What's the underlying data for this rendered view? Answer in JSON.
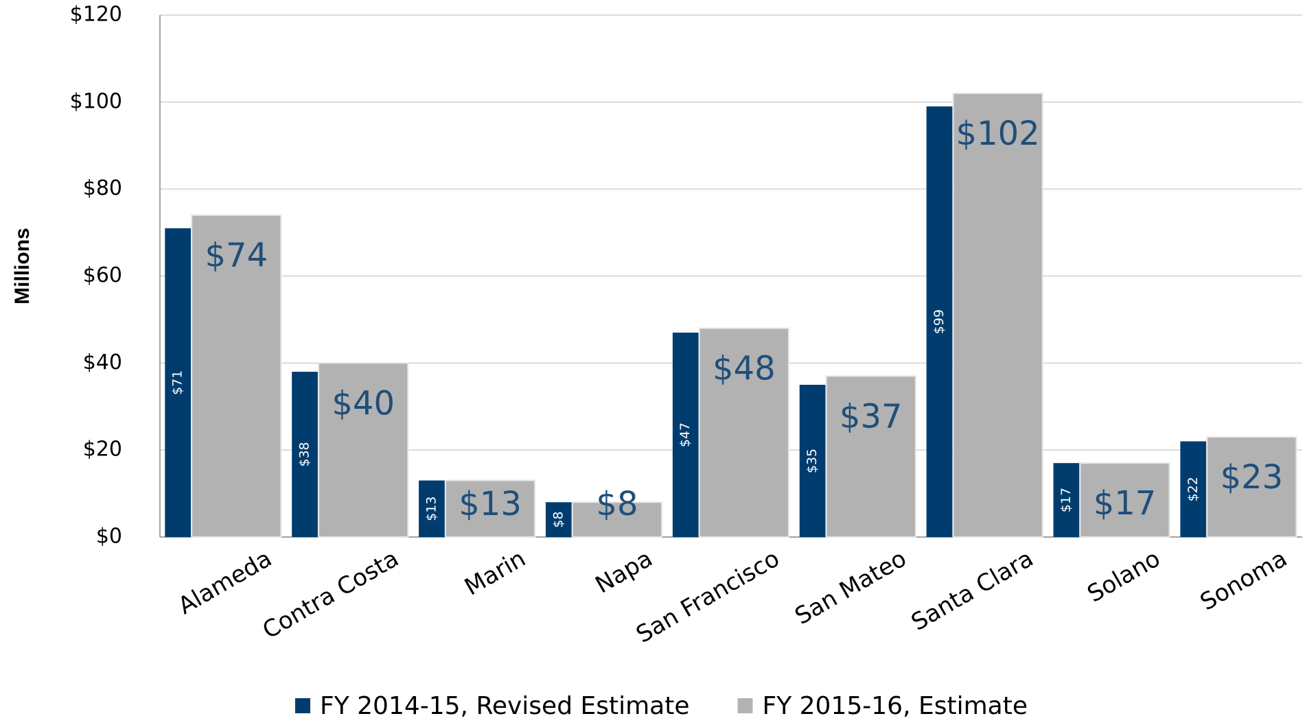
{
  "chart_data": {
    "type": "bar",
    "y_label": "Millions",
    "categories": [
      "Alameda",
      "Contra Costa",
      "Marin",
      "Napa",
      "San Francisco",
      "San Mateo",
      "Santa Clara",
      "Solano",
      "Sonoma"
    ],
    "series": [
      {
        "name": "FY 2014-15, Revised Estimate",
        "color": "#003d6e",
        "values": [
          71,
          38,
          13,
          8,
          47,
          35,
          99,
          17,
          22
        ],
        "value_labels": [
          "$71",
          "$38",
          "$13",
          "$8",
          "$47",
          "$35",
          "$99",
          "$17",
          "$22"
        ]
      },
      {
        "name": "FY 2015-16, Estimate",
        "color": "#b2b2b2",
        "values": [
          74,
          40,
          13,
          8,
          48,
          37,
          102,
          17,
          23
        ],
        "value_labels": [
          "$74",
          "$40",
          "$13",
          "$8",
          "$48",
          "$37",
          "$102",
          "$17",
          "$23"
        ]
      }
    ],
    "ylim": [
      0,
      120
    ],
    "yticks": [
      {
        "value": 0,
        "label": "$0"
      },
      {
        "value": 20,
        "label": "$20"
      },
      {
        "value": 40,
        "label": "$40"
      },
      {
        "value": 60,
        "label": "$60"
      },
      {
        "value": 80,
        "label": "$80"
      },
      {
        "value": 100,
        "label": "$100"
      },
      {
        "value": 120,
        "label": "$120"
      }
    ],
    "grid": true,
    "legend": "bottom"
  }
}
